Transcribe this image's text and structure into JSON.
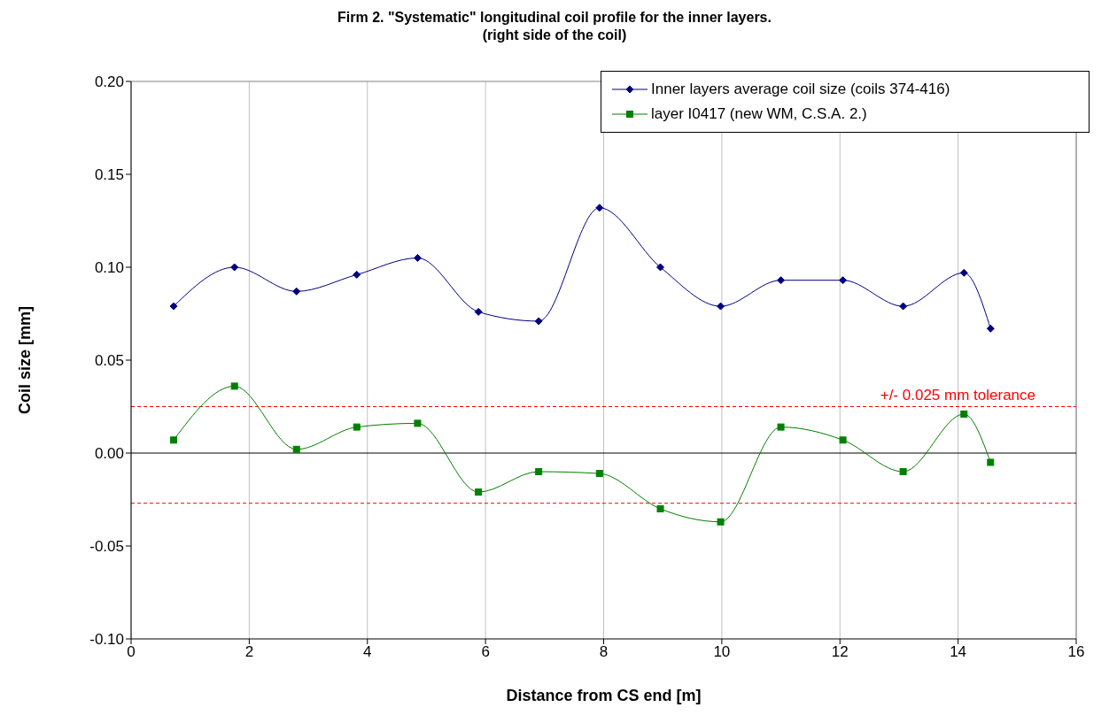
{
  "chart_data": {
    "type": "line",
    "title": "Firm 2. \"Systematic\" longitudinal coil profile for the inner layers.",
    "subtitle": "(right side of the coil)",
    "xlabel": "Distance from CS end [m]",
    "ylabel": "Coil size [mm]",
    "x": [
      0.72,
      1.75,
      2.8,
      3.82,
      4.85,
      5.88,
      6.9,
      7.93,
      8.96,
      9.98,
      11.0,
      12.05,
      13.07,
      14.1,
      14.55
    ],
    "series": [
      {
        "name": "Inner layers average coil size (coils 374-416)",
        "color": "#000080",
        "marker": "diamond",
        "values": [
          0.079,
          0.1,
          0.087,
          0.096,
          0.105,
          0.076,
          0.071,
          0.132,
          0.1,
          0.079,
          0.093,
          0.093,
          0.079,
          0.097,
          0.067
        ]
      },
      {
        "name": "layer I0417 (new WM, C.S.A. 2.)",
        "color": "#008000",
        "marker": "square",
        "values": [
          0.007,
          0.036,
          0.002,
          0.014,
          0.016,
          -0.021,
          -0.01,
          -0.011,
          -0.03,
          -0.037,
          0.014,
          0.007,
          -0.01,
          0.021,
          -0.005
        ]
      }
    ],
    "xlim": [
      0,
      16
    ],
    "xticks": [
      0,
      2,
      4,
      6,
      8,
      10,
      12,
      14,
      16
    ],
    "ylim": [
      -0.1,
      0.2
    ],
    "yticks": [
      {
        "value": -0.1,
        "label": "-0.10"
      },
      {
        "value": -0.05,
        "label": "-0.05"
      },
      {
        "value": 0,
        "label": "0.00"
      },
      {
        "value": 0.05,
        "label": "0.05"
      },
      {
        "value": 0.1,
        "label": "0.10"
      },
      {
        "value": 0.15,
        "label": "0.15"
      },
      {
        "value": 0.2,
        "label": "0.20"
      }
    ],
    "ref_lines": [
      {
        "axis": "y",
        "value": 0,
        "color": "#000000",
        "line_style": "solid"
      },
      {
        "axis": "y",
        "value": 0.025,
        "label": "+/- 0.025 mm tolerance",
        "color": "#ff0000",
        "line_style": "dashed"
      },
      {
        "axis": "y",
        "value": -0.027,
        "color": "#ff0000",
        "line_style": "dashed"
      }
    ],
    "grid": "x",
    "legend": "top right",
    "line_style": "solid"
  }
}
